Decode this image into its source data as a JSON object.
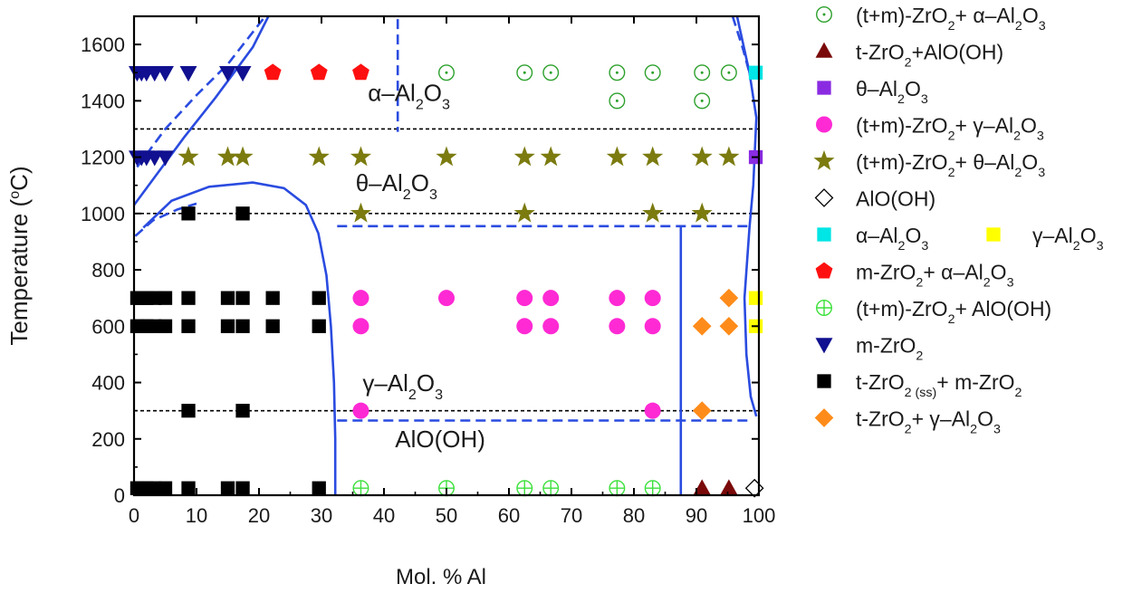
{
  "chart_data": {
    "type": "scatter",
    "title": "",
    "xlabel": "Mol. % Al",
    "ylabel_prefix": "Temperature (",
    "ylabel_sup": "o",
    "ylabel_suffix": "C)",
    "xlim": [
      0,
      100
    ],
    "ylim": [
      0,
      1700
    ],
    "xticks": [
      0,
      10,
      20,
      30,
      40,
      50,
      60,
      70,
      80,
      90,
      100
    ],
    "yticks": [
      0,
      200,
      400,
      600,
      800,
      1000,
      1200,
      1400,
      1600
    ],
    "legend_position": "right-outside",
    "region_labels": [
      {
        "name": "alpha-al2o3-region",
        "x": 44,
        "y": 1400,
        "parts": [
          [
            "α–Al",
            ""
          ],
          [
            "2",
            "sub"
          ],
          [
            "O",
            ""
          ],
          [
            "3",
            "sub"
          ]
        ]
      },
      {
        "name": "theta-al2o3-region",
        "x": 42,
        "y": 1080,
        "parts": [
          [
            "θ–Al",
            ""
          ],
          [
            "2",
            "sub"
          ],
          [
            "O",
            ""
          ],
          [
            "3",
            "sub"
          ]
        ]
      },
      {
        "name": "gamma-al2o3-region",
        "x": 43,
        "y": 370,
        "parts": [
          [
            "γ–Al",
            ""
          ],
          [
            "2",
            "sub"
          ],
          [
            "O",
            ""
          ],
          [
            "3",
            "sub"
          ]
        ]
      },
      {
        "name": "aloh-region",
        "x": 49,
        "y": 170,
        "parts": [
          [
            "AlO(OH)",
            ""
          ]
        ]
      }
    ],
    "series": [
      {
        "name": "(t+m)-ZrO2 + α-Al2O3",
        "marker": "circle-dot",
        "color": "#2ca02c",
        "label": [
          [
            "(t+m)-ZrO",
            ""
          ],
          [
            "2",
            "sub"
          ],
          [
            "+ α–Al",
            ""
          ],
          [
            "2",
            "sub"
          ],
          [
            "O",
            ""
          ],
          [
            "3",
            "sub"
          ]
        ],
        "points": [
          [
            50,
            1500
          ],
          [
            62.5,
            1500
          ],
          [
            66.7,
            1500
          ],
          [
            77.3,
            1500
          ],
          [
            83,
            1500
          ],
          [
            90.9,
            1500
          ],
          [
            95.2,
            1500
          ],
          [
            77.3,
            1400
          ],
          [
            90.9,
            1400
          ]
        ]
      },
      {
        "name": "t-ZrO2 + AlO(OH)",
        "marker": "triangle-up",
        "color": "#7a0a0a",
        "label": [
          [
            "t-ZrO",
            ""
          ],
          [
            "2",
            "sub"
          ],
          [
            "+AlO(OH)",
            ""
          ]
        ],
        "points": [
          [
            90.9,
            25
          ],
          [
            95.2,
            25
          ]
        ]
      },
      {
        "name": "θ-Al2O3",
        "marker": "square",
        "color": "#8a2be2",
        "label": [
          [
            "θ–Al",
            ""
          ],
          [
            "2",
            "sub"
          ],
          [
            "O",
            ""
          ],
          [
            "3",
            "sub"
          ]
        ],
        "points": [
          [
            99.5,
            1200
          ]
        ]
      },
      {
        "name": "(t+m)-ZrO2 + γ-Al2O3",
        "marker": "circle",
        "color": "#ff2ad4",
        "label": [
          [
            "(t+m)-ZrO",
            ""
          ],
          [
            "2",
            "sub"
          ],
          [
            "+ γ–Al",
            ""
          ],
          [
            "2",
            "sub"
          ],
          [
            "O",
            ""
          ],
          [
            "3",
            "sub"
          ]
        ],
        "points": [
          [
            36.3,
            700
          ],
          [
            50,
            700
          ],
          [
            62.5,
            700
          ],
          [
            66.7,
            700
          ],
          [
            77.3,
            700
          ],
          [
            83,
            700
          ],
          [
            36.3,
            600
          ],
          [
            62.5,
            600
          ],
          [
            66.7,
            600
          ],
          [
            77.3,
            600
          ],
          [
            83,
            600
          ],
          [
            36.3,
            300
          ],
          [
            83,
            300
          ]
        ]
      },
      {
        "name": "(t+m)-ZrO2 + θ-Al2O3",
        "marker": "star",
        "color": "#7b7b10",
        "label": [
          [
            "(t+m)-ZrO",
            ""
          ],
          [
            "2",
            "sub"
          ],
          [
            "+ θ–Al",
            ""
          ],
          [
            "2",
            "sub"
          ],
          [
            "O",
            ""
          ],
          [
            "3",
            "sub"
          ]
        ],
        "points": [
          [
            8.7,
            1200
          ],
          [
            15,
            1200
          ],
          [
            17.4,
            1200
          ],
          [
            29.6,
            1200
          ],
          [
            36.3,
            1200
          ],
          [
            50,
            1200
          ],
          [
            62.5,
            1200
          ],
          [
            66.7,
            1200
          ],
          [
            77.3,
            1200
          ],
          [
            83,
            1200
          ],
          [
            90.9,
            1200
          ],
          [
            95.2,
            1200
          ],
          [
            36.3,
            1000
          ],
          [
            62.5,
            1000
          ],
          [
            83,
            1000
          ],
          [
            90.9,
            1000
          ]
        ]
      },
      {
        "name": "AlO(OH)",
        "marker": "diamond-open",
        "color": "#000000",
        "label": [
          [
            "AlO(OH)",
            ""
          ]
        ],
        "points": [
          [
            99.3,
            25
          ]
        ]
      },
      {
        "name": "α-Al2O3",
        "marker": "square",
        "color": "#00e5e5",
        "label": [
          [
            "α–Al",
            ""
          ],
          [
            "2",
            "sub"
          ],
          [
            "O",
            ""
          ],
          [
            "3",
            "sub"
          ]
        ],
        "points": [
          [
            99.5,
            1500
          ]
        ]
      },
      {
        "name": "γ-Al2O3",
        "marker": "square",
        "color": "#ffff00",
        "label": [
          [
            "γ–Al",
            ""
          ],
          [
            "2",
            "sub"
          ],
          [
            "O",
            ""
          ],
          [
            "3",
            "sub"
          ]
        ],
        "points": [
          [
            99.5,
            700
          ],
          [
            99.5,
            600
          ]
        ]
      },
      {
        "name": "m-ZrO2 + α-Al2O3",
        "marker": "pentagon",
        "color": "#ff1010",
        "label": [
          [
            "m-ZrO",
            ""
          ],
          [
            "2",
            "sub"
          ],
          [
            "+ α–Al",
            ""
          ],
          [
            "2",
            "sub"
          ],
          [
            "O",
            ""
          ],
          [
            "3",
            "sub"
          ]
        ],
        "points": [
          [
            22.2,
            1500
          ],
          [
            29.6,
            1500
          ],
          [
            36.3,
            1500
          ]
        ]
      },
      {
        "name": "(t+m)-ZrO2 + AlO(OH)",
        "marker": "circle-plus",
        "color": "#3ce03c",
        "label": [
          [
            "(t+m)-ZrO",
            ""
          ],
          [
            "2",
            "sub"
          ],
          [
            "+ AlO(OH)",
            ""
          ]
        ],
        "points": [
          [
            36.3,
            25
          ],
          [
            50,
            25
          ],
          [
            62.5,
            25
          ],
          [
            66.7,
            25
          ],
          [
            77.3,
            25
          ],
          [
            83,
            25
          ]
        ]
      },
      {
        "name": "m-ZrO2",
        "marker": "triangle-down",
        "color": "#101090",
        "label": [
          [
            "m-ZrO",
            ""
          ],
          [
            "2",
            "sub"
          ]
        ],
        "points": [
          [
            0.5,
            1500
          ],
          [
            1.2,
            1500
          ],
          [
            2,
            1500
          ],
          [
            3.3,
            1500
          ],
          [
            5,
            1500
          ],
          [
            8.7,
            1500
          ],
          [
            15,
            1500
          ],
          [
            17.4,
            1500
          ],
          [
            0.5,
            1200
          ],
          [
            1.2,
            1200
          ],
          [
            2,
            1200
          ],
          [
            3.3,
            1200
          ],
          [
            5,
            1200
          ]
        ]
      },
      {
        "name": "t-ZrO2(ss) + m-ZrO2",
        "marker": "square",
        "color": "#000000",
        "label": [
          [
            "t-ZrO",
            ""
          ],
          [
            "2 (ss)",
            "sub"
          ],
          [
            "+ m-ZrO",
            ""
          ],
          [
            "2",
            "sub"
          ]
        ],
        "points": [
          [
            8.7,
            1000
          ],
          [
            17.4,
            1000
          ],
          [
            0.5,
            700
          ],
          [
            1.2,
            700
          ],
          [
            2,
            700
          ],
          [
            3.3,
            700
          ],
          [
            5,
            700
          ],
          [
            8.7,
            700
          ],
          [
            15,
            700
          ],
          [
            17.4,
            700
          ],
          [
            22.2,
            700
          ],
          [
            29.6,
            700
          ],
          [
            0.5,
            600
          ],
          [
            1.2,
            600
          ],
          [
            2,
            600
          ],
          [
            3.3,
            600
          ],
          [
            5,
            600
          ],
          [
            8.7,
            600
          ],
          [
            15,
            600
          ],
          [
            17.4,
            600
          ],
          [
            22.2,
            600
          ],
          [
            29.6,
            600
          ],
          [
            8.7,
            300
          ],
          [
            17.4,
            300
          ],
          [
            0.5,
            25
          ],
          [
            1.2,
            25
          ],
          [
            2,
            25
          ],
          [
            3.3,
            25
          ],
          [
            5,
            25
          ],
          [
            8.7,
            25
          ],
          [
            15,
            25
          ],
          [
            17.4,
            25
          ],
          [
            29.6,
            25
          ]
        ]
      },
      {
        "name": "t-ZrO2 + γ-Al2O3",
        "marker": "diamond",
        "color": "#ff8c1a",
        "label": [
          [
            "t-ZrO",
            ""
          ],
          [
            "2",
            "sub"
          ],
          [
            "+ γ–Al",
            ""
          ],
          [
            "2",
            "sub"
          ],
          [
            "O",
            ""
          ],
          [
            "3",
            "sub"
          ]
        ],
        "points": [
          [
            90.9,
            600
          ],
          [
            95.2,
            600
          ],
          [
            95.2,
            700
          ],
          [
            90.9,
            300
          ]
        ]
      }
    ],
    "boundaries": {
      "dotted_isotherms": [
        1300,
        1000,
        300
      ],
      "solid": [
        {
          "name": "upper-left-boundary",
          "points": [
            [
              0,
              1030
            ],
            [
              8,
              1270
            ],
            [
              13,
              1410
            ],
            [
              19,
              1590
            ],
            [
              21.5,
              1700
            ]
          ]
        },
        {
          "name": "theta-gamma-dome",
          "points": [
            [
              1.5,
              950
            ],
            [
              6,
              1045
            ],
            [
              12,
              1095
            ],
            [
              19,
              1110
            ],
            [
              24,
              1090
            ],
            [
              27.5,
              1030
            ],
            [
              29.5,
              930
            ],
            [
              30.8,
              780
            ],
            [
              31.5,
              600
            ],
            [
              32,
              400
            ],
            [
              32.2,
              200
            ],
            [
              32.2,
              0
            ]
          ]
        },
        {
          "name": "right-vertical-boundary",
          "points": [
            [
              87.5,
              955
            ],
            [
              87.5,
              0
            ]
          ]
        },
        {
          "name": "right-edge-boundary",
          "points": [
            [
              96.5,
              1700
            ],
            [
              98.5,
              1500
            ],
            [
              99.6,
              1340
            ],
            [
              99.1,
              1100
            ],
            [
              98.5,
              950
            ],
            [
              97.7,
              700
            ],
            [
              98,
              500
            ],
            [
              98.7,
              350
            ],
            [
              99.6,
              280
            ]
          ]
        }
      ],
      "dashed": [
        {
          "name": "upper-left-dashed",
          "points": [
            [
              0.5,
              1165
            ],
            [
              5,
              1300
            ],
            [
              10,
              1420
            ],
            [
              15,
              1530
            ],
            [
              21,
              1700
            ]
          ]
        },
        {
          "name": "lower-left-dashed",
          "points": [
            [
              0.2,
              920
            ],
            [
              3,
              975
            ],
            [
              7,
              1015
            ],
            [
              10,
              1035
            ]
          ]
        },
        {
          "name": "alpha-theta-vertical",
          "points": [
            [
              42.2,
              1690
            ],
            [
              42.2,
              1290
            ]
          ]
        },
        {
          "name": "theta-gamma-dashed",
          "points": [
            [
              32.5,
              955
            ],
            [
              99,
              955
            ]
          ]
        },
        {
          "name": "gamma-aloh-dashed",
          "points": [
            [
              32.5,
              265
            ],
            [
              99,
              265
            ]
          ]
        },
        {
          "name": "right-top-dashed",
          "points": [
            [
              95.8,
              1700
            ],
            [
              97.5,
              1580
            ],
            [
              98.6,
              1490
            ]
          ]
        }
      ]
    }
  }
}
